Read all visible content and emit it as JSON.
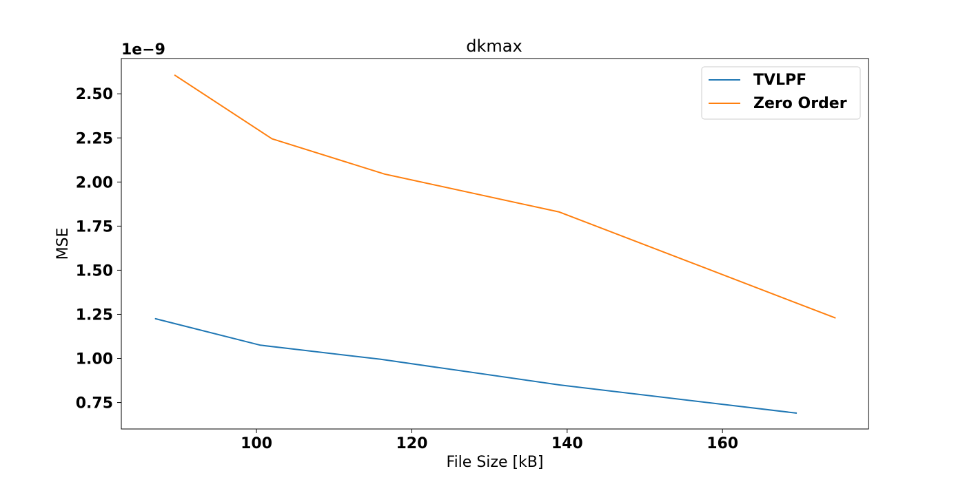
{
  "chart_data": {
    "type": "line",
    "title": "dkmax",
    "xlabel": "File Size [kB]",
    "ylabel": "MSE",
    "y_offset_label": "1e−9",
    "xlim": [
      82.6,
      178.8
    ],
    "ylim": [
      0.6,
      2.7
    ],
    "x_ticks": [
      100,
      120,
      140,
      160
    ],
    "x_tick_labels": [
      "100",
      "120",
      "140",
      "160"
    ],
    "y_ticks": [
      0.75,
      1.0,
      1.25,
      1.5,
      1.75,
      2.0,
      2.25,
      2.5
    ],
    "y_tick_labels": [
      "0.75",
      "1.00",
      "1.25",
      "1.50",
      "1.75",
      "2.00",
      "2.25",
      "2.50"
    ],
    "y_scale": "1e-9",
    "grid": false,
    "legend_position": "top-right",
    "series": [
      {
        "name": "TVLPF",
        "color": "#1f77b4",
        "x": [
          87.0,
          100.5,
          116.0,
          139.0,
          169.5
        ],
        "y": [
          1.225,
          1.075,
          0.995,
          0.85,
          0.69
        ]
      },
      {
        "name": "Zero Order",
        "color": "#ff7f0e",
        "x": [
          89.5,
          102.0,
          116.5,
          139.0,
          174.5
        ],
        "y": [
          2.605,
          2.245,
          2.045,
          1.83,
          1.23
        ]
      }
    ]
  }
}
